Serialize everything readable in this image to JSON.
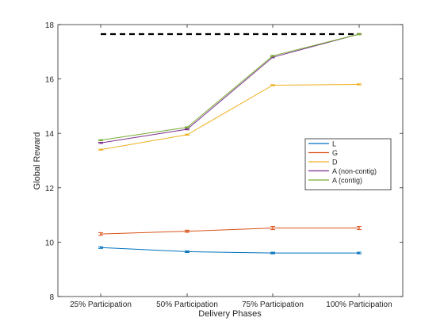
{
  "chart_data": {
    "type": "line",
    "categories": [
      "25% Participation",
      "50% Participation",
      "75% Participation",
      "100% Participation"
    ],
    "xlabel": "Delivery Phases",
    "ylabel": "Global Reward",
    "ylim": [
      8,
      18
    ],
    "yticks": [
      "8",
      "10",
      "12",
      "14",
      "16",
      "18"
    ],
    "grid": false,
    "legend_position": "right",
    "reference_line": {
      "value": 17.65,
      "style": "dashed",
      "color": "#000000"
    },
    "series": [
      {
        "name": "L",
        "color": "#0072BD",
        "values": [
          9.8,
          9.65,
          9.6,
          9.6
        ],
        "errors": [
          0.03,
          0.03,
          0.03,
          0.03
        ]
      },
      {
        "name": "G",
        "color": "#D95319",
        "values": [
          10.3,
          10.4,
          10.52,
          10.52
        ],
        "errors": [
          0.05,
          0.04,
          0.06,
          0.06
        ]
      },
      {
        "name": "D",
        "color": "#EDB120",
        "values": [
          13.4,
          13.95,
          15.77,
          15.8
        ],
        "errors": [
          0.02,
          0.02,
          0.02,
          0.02
        ]
      },
      {
        "name": "A (non-contig)",
        "color": "#7E2F8E",
        "values": [
          13.65,
          14.15,
          16.8,
          17.65
        ],
        "errors": [
          0.02,
          0.02,
          0.02,
          0.02
        ]
      },
      {
        "name": "A (contig)",
        "color": "#77AC30",
        "values": [
          13.75,
          14.22,
          16.85,
          17.65
        ],
        "errors": [
          0.02,
          0.02,
          0.02,
          0.02
        ]
      }
    ]
  }
}
